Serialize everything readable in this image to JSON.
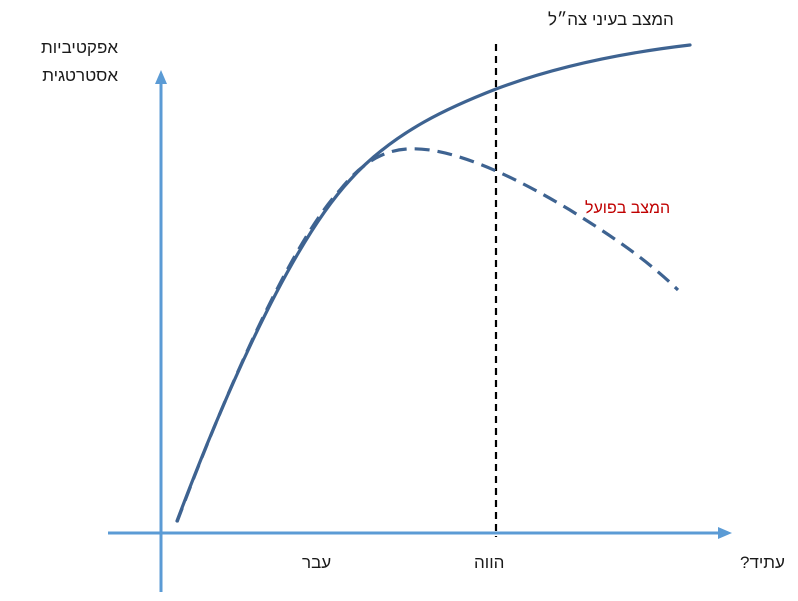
{
  "y_axis_label": [
    "אפקטיביות",
    "אסטרטגית"
  ],
  "series": {
    "claimed": {
      "label": "המצב בעיני צה״ל",
      "color": "#3e6391"
    },
    "actual": {
      "label": "המצב בפועל",
      "color": "#3e6391",
      "label_color": "#c00000"
    }
  },
  "x_axis_labels": {
    "past": "עבר",
    "present": "הווה",
    "future": "עתיד?"
  },
  "colors": {
    "axis": "#5b9bd5",
    "present_marker": "#000000"
  }
}
